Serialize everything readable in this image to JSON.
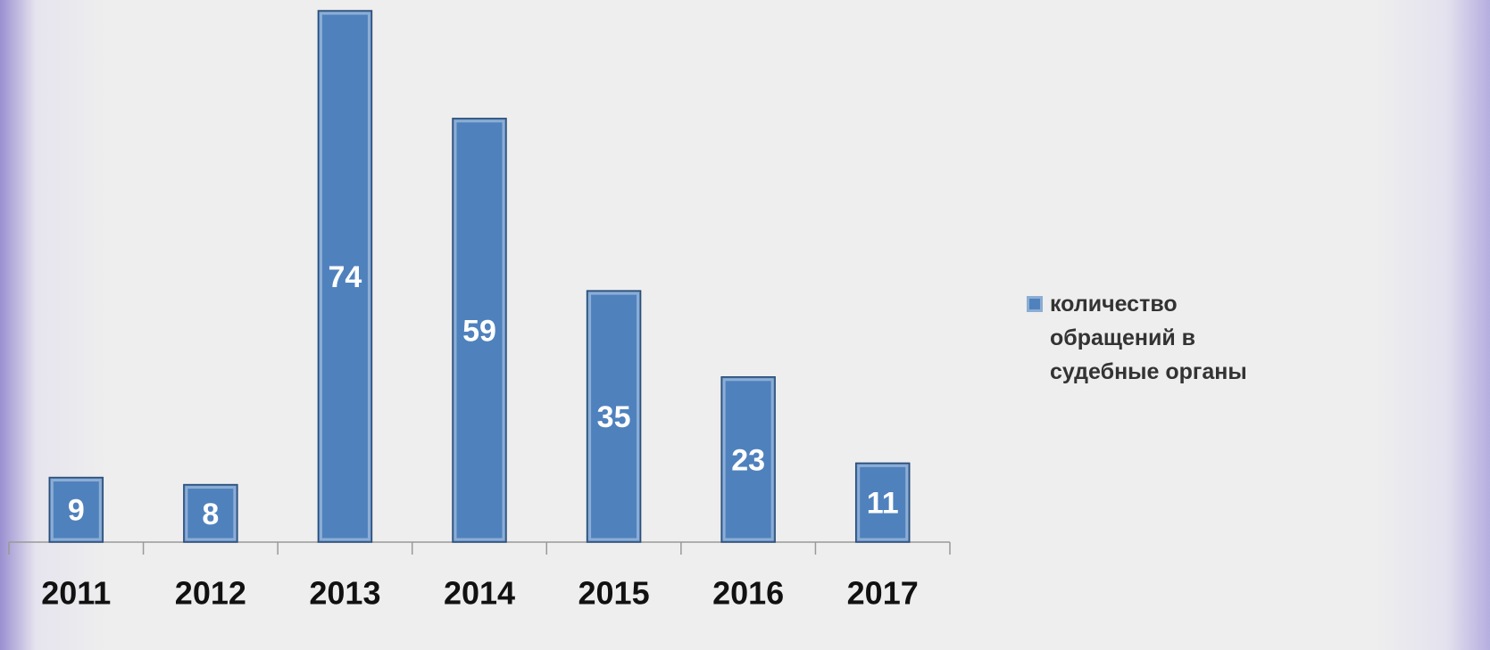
{
  "chart_data": {
    "type": "bar",
    "categories": [
      "2011",
      "2012",
      "2013",
      "2014",
      "2015",
      "2016",
      "2017"
    ],
    "series": [
      {
        "name": "количество обращений в судебные органы",
        "color": "#4f81bd",
        "values": [
          9,
          8,
          74,
          59,
          35,
          23,
          11
        ]
      }
    ],
    "ylim": [
      0,
      74
    ],
    "legend": "right",
    "grid": false
  }
}
